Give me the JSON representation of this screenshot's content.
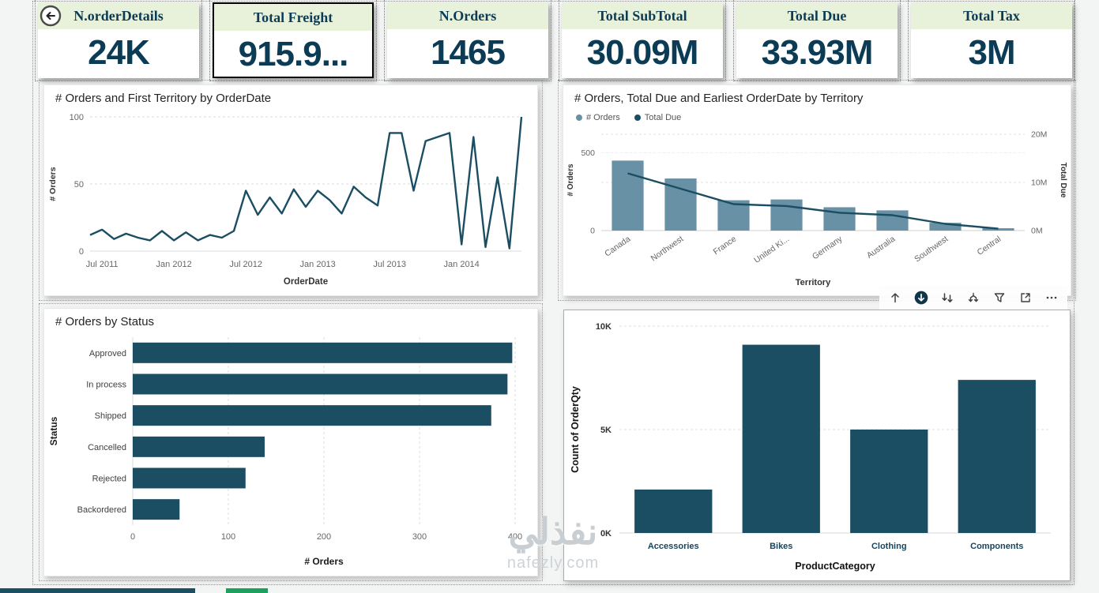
{
  "colors": {
    "teal": "#1b4d63",
    "bar_light": "#6991a6",
    "card_header_bg": "#e8f1da",
    "card_text": "#0c3c55",
    "panel_title": "#252423",
    "strip_green": "#19a15e"
  },
  "kpi_cards": [
    {
      "label": "N.orderDetails",
      "value": "24K"
    },
    {
      "label": "Total Freight",
      "value": "915.9..."
    },
    {
      "label": "N.Orders",
      "value": "1465"
    },
    {
      "label": "Total SubTotal",
      "value": "30.09M"
    },
    {
      "label": "Total Due",
      "value": "33.93M"
    },
    {
      "label": "Total Tax",
      "value": "3M"
    }
  ],
  "toolbar_icons": [
    "drill-up",
    "drill-down",
    "go-to-next-level",
    "expand-all-down-one-level",
    "filters",
    "focus-mode",
    "more-options"
  ],
  "watermark": {
    "arabic": "نفذلي",
    "domain": "nafezly.com"
  },
  "chart_data": [
    {
      "type": "line",
      "title": "# Orders and First Territory by OrderDate",
      "xlabel": "OrderDate",
      "ylabel": "# Orders",
      "ylim": [
        0,
        100
      ],
      "yticks": [
        0,
        50,
        100
      ],
      "xticks": [
        {
          "i": 1,
          "label": "Jul 2011"
        },
        {
          "i": 7,
          "label": "Jan 2012"
        },
        {
          "i": 13,
          "label": "Jul 2012"
        },
        {
          "i": 19,
          "label": "Jan 2013"
        },
        {
          "i": 25,
          "label": "Jul 2013"
        },
        {
          "i": 31,
          "label": "Jan 2014"
        }
      ],
      "x_unit": "month",
      "values": [
        12,
        16,
        9,
        13,
        10,
        8,
        15,
        8,
        14,
        8,
        12,
        10,
        15,
        45,
        27,
        40,
        28,
        46,
        33,
        45,
        38,
        28,
        48,
        40,
        34,
        88,
        88,
        45,
        82,
        85,
        88,
        5,
        85,
        3,
        55,
        2,
        100
      ]
    },
    {
      "type": "combo",
      "title": "# Orders, Total Due and Earliest OrderDate by Territory",
      "xlabel": "Territory",
      "categories": [
        "Canada",
        "Northwest",
        "France",
        "United Ki...",
        "Germany",
        "Australia",
        "Southwest",
        "Central"
      ],
      "series": [
        {
          "name": "# Orders",
          "kind": "bar",
          "axis": "left",
          "values": [
            450,
            335,
            195,
            200,
            150,
            130,
            50,
            15
          ]
        },
        {
          "name": "Total Due",
          "kind": "line",
          "axis": "right",
          "values_millions": [
            11.9,
            8.7,
            5.5,
            5.1,
            3.7,
            3.2,
            1.4,
            0.4
          ]
        }
      ],
      "left_axis": {
        "label": "# Orders",
        "ticks": [
          {
            "value": 0,
            "label": "0"
          },
          {
            "value": 500,
            "label": "500"
          }
        ],
        "scale_max": 650
      },
      "right_axis": {
        "label": "Total Due",
        "ticks": [
          {
            "value": 0,
            "label": "0M"
          },
          {
            "value": 10,
            "label": "10M"
          },
          {
            "value": 20,
            "label": "20M"
          }
        ],
        "scale_max": 21
      }
    },
    {
      "type": "bar_horizontal",
      "title": "# Orders by Status",
      "xlabel": "# Orders",
      "ylabel": "Status",
      "categories": [
        "Approved",
        "In process",
        "Shipped",
        "Cancelled",
        "Rejected",
        "Backordered"
      ],
      "values": [
        397,
        392,
        375,
        138,
        118,
        49
      ],
      "xticks": [
        0,
        100,
        200,
        300,
        400
      ],
      "xmax": 400
    },
    {
      "type": "bar",
      "title": "",
      "xlabel": "ProductCategory",
      "ylabel": "Count of OrderQty",
      "categories": [
        "Accessories",
        "Bikes",
        "Clothing",
        "Components"
      ],
      "values": [
        2100,
        9100,
        5000,
        7400
      ],
      "yticks": [
        {
          "value": 0,
          "label": "0K"
        },
        {
          "value": 5000,
          "label": "5K"
        },
        {
          "value": 10000,
          "label": "10K"
        }
      ],
      "ymax": 10000
    }
  ]
}
